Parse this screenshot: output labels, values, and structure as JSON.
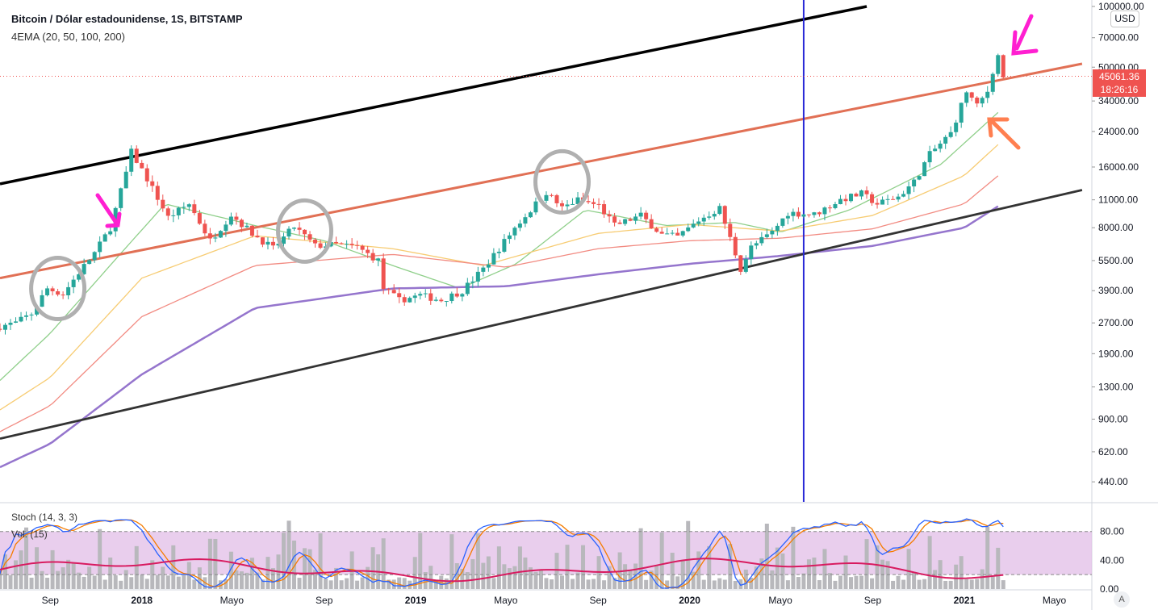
{
  "header": {
    "title": "Bitcoin / Dólar estadounidense, 1S, BITSTAMP",
    "indicator": "4EMA (20, 50, 100, 200)",
    "currency": "USD"
  },
  "price_badge": {
    "price": "45061.36",
    "countdown": "18:26:16"
  },
  "lower_pane": {
    "stoch_label": "Stoch (14, 3, 3)",
    "vol_label": "Vol. (15)"
  },
  "auto_button": "A",
  "colors": {
    "up": "#26a69a",
    "down": "#ef5350",
    "ema20": "#8fcf8a",
    "ema50": "#f7cc73",
    "ema100": "#f28b82",
    "ema200": "#9575cd",
    "channel": "#000000",
    "midline": "#e17055",
    "vline": "#2929d6",
    "stoch_k": "#2962ff",
    "stoch_d": "#f57c00",
    "vol_ma": "#d81b60",
    "stoch_band": "#e1bee7",
    "annotation_arrow": "#ff1fd1",
    "annotation_arrow2": "#ff7f50"
  },
  "chart_data": {
    "type": "candlestick",
    "title": "Bitcoin / Dólar estadounidense, 1S, BITSTAMP",
    "y_scale": "log",
    "y_ticks": [
      "100000.00",
      "70000.00",
      "50000.00",
      "34000.00",
      "24000.00",
      "16000.00",
      "11000.00",
      "8000.00",
      "5500.00",
      "3900.00",
      "2700.00",
      "1900.00",
      "1300.00",
      "900.00",
      "620.00",
      "440.00"
    ],
    "x_ticks": [
      "Sep",
      "2018",
      "Mayo",
      "Sep",
      "2019",
      "Mayo",
      "Sep",
      "2020",
      "Mayo",
      "Sep",
      "2021",
      "Mayo"
    ],
    "x_tick_dates": [
      "2017-09-01",
      "2018-01-01",
      "2018-05-01",
      "2018-09-01",
      "2019-01-01",
      "2019-05-01",
      "2019-09-01",
      "2020-01-01",
      "2020-05-01",
      "2020-09-01",
      "2021-01-01",
      "2021-05-01"
    ],
    "x_range": [
      "2017-06-26",
      "2021-06-20"
    ],
    "y_range": [
      350,
      100000
    ],
    "close_path": [
      {
        "date": "2017-06-26",
        "price": 2600
      },
      {
        "date": "2017-07-17",
        "price": 2700
      },
      {
        "date": "2017-08-07",
        "price": 3000
      },
      {
        "date": "2017-08-28",
        "price": 4000
      },
      {
        "date": "2017-09-18",
        "price": 3750
      },
      {
        "date": "2017-10-09",
        "price": 4800
      },
      {
        "date": "2017-10-30",
        "price": 6000
      },
      {
        "date": "2017-11-20",
        "price": 8000
      },
      {
        "date": "2017-12-11",
        "price": 15000
      },
      {
        "date": "2017-12-18",
        "price": 19000
      },
      {
        "date": "2018-01-08",
        "price": 14000
      },
      {
        "date": "2018-02-05",
        "price": 9000
      },
      {
        "date": "2018-03-05",
        "price": 10500
      },
      {
        "date": "2018-04-02",
        "price": 6900
      },
      {
        "date": "2018-04-30",
        "price": 9300
      },
      {
        "date": "2018-05-28",
        "price": 7500
      },
      {
        "date": "2018-06-25",
        "price": 6300
      },
      {
        "date": "2018-07-23",
        "price": 8100
      },
      {
        "date": "2018-08-20",
        "price": 6500
      },
      {
        "date": "2018-09-17",
        "price": 6600
      },
      {
        "date": "2018-10-15",
        "price": 6400
      },
      {
        "date": "2018-11-12",
        "price": 5500
      },
      {
        "date": "2018-11-19",
        "price": 4000
      },
      {
        "date": "2018-12-10",
        "price": 3500
      },
      {
        "date": "2019-01-07",
        "price": 3700
      },
      {
        "date": "2019-02-04",
        "price": 3500
      },
      {
        "date": "2019-03-04",
        "price": 3900
      },
      {
        "date": "2019-04-01",
        "price": 5000
      },
      {
        "date": "2019-05-13",
        "price": 8000
      },
      {
        "date": "2019-06-24",
        "price": 12000
      },
      {
        "date": "2019-07-15",
        "price": 10000
      },
      {
        "date": "2019-08-05",
        "price": 11000
      },
      {
        "date": "2019-09-02",
        "price": 10300
      },
      {
        "date": "2019-09-23",
        "price": 8200
      },
      {
        "date": "2019-10-28",
        "price": 9200
      },
      {
        "date": "2019-11-25",
        "price": 7400
      },
      {
        "date": "2019-12-16",
        "price": 7200
      },
      {
        "date": "2020-01-13",
        "price": 8700
      },
      {
        "date": "2020-02-10",
        "price": 10000
      },
      {
        "date": "2020-03-09",
        "price": 5000
      },
      {
        "date": "2020-03-23",
        "price": 6400
      },
      {
        "date": "2020-04-20",
        "price": 7600
      },
      {
        "date": "2020-05-11",
        "price": 9500
      },
      {
        "date": "2020-06-15",
        "price": 9300
      },
      {
        "date": "2020-07-20",
        "price": 11000
      },
      {
        "date": "2020-08-17",
        "price": 11800
      },
      {
        "date": "2020-09-07",
        "price": 10500
      },
      {
        "date": "2020-10-05",
        "price": 11400
      },
      {
        "date": "2020-10-26",
        "price": 13500
      },
      {
        "date": "2020-11-16",
        "price": 18500
      },
      {
        "date": "2020-12-14",
        "price": 23500
      },
      {
        "date": "2021-01-04",
        "price": 38000
      },
      {
        "date": "2021-01-18",
        "price": 32000
      },
      {
        "date": "2021-02-01",
        "price": 38000
      },
      {
        "date": "2021-02-08",
        "price": 48000
      },
      {
        "date": "2021-02-15",
        "price": 57000
      },
      {
        "date": "2021-02-22",
        "price": 45061
      }
    ],
    "ema_anchor_series": [
      {
        "name": "EMA20",
        "points": [
          {
            "date": "2017-06-26",
            "price": 1400
          },
          {
            "date": "2017-09-01",
            "price": 2400
          },
          {
            "date": "2017-12-01",
            "price": 5800
          },
          {
            "date": "2018-02-01",
            "price": 10500
          },
          {
            "date": "2018-06-01",
            "price": 8200
          },
          {
            "date": "2018-09-01",
            "price": 6900
          },
          {
            "date": "2018-12-01",
            "price": 5200
          },
          {
            "date": "2019-03-01",
            "price": 4000
          },
          {
            "date": "2019-05-15",
            "price": 5300
          },
          {
            "date": "2019-08-15",
            "price": 9800
          },
          {
            "date": "2019-12-01",
            "price": 8200
          },
          {
            "date": "2020-03-01",
            "price": 8500
          },
          {
            "date": "2020-05-01",
            "price": 7600
          },
          {
            "date": "2020-08-01",
            "price": 9800
          },
          {
            "date": "2020-12-01",
            "price": 16500
          },
          {
            "date": "2021-02-20",
            "price": 31000
          }
        ]
      },
      {
        "name": "EMA50",
        "points": [
          {
            "date": "2017-06-26",
            "price": 1000
          },
          {
            "date": "2017-09-01",
            "price": 1450
          },
          {
            "date": "2018-01-01",
            "price": 4500
          },
          {
            "date": "2018-06-01",
            "price": 7300
          },
          {
            "date": "2018-12-01",
            "price": 6300
          },
          {
            "date": "2019-04-01",
            "price": 5200
          },
          {
            "date": "2019-09-01",
            "price": 7500
          },
          {
            "date": "2020-01-01",
            "price": 8300
          },
          {
            "date": "2020-05-01",
            "price": 7700
          },
          {
            "date": "2020-09-01",
            "price": 9200
          },
          {
            "date": "2021-01-01",
            "price": 14500
          },
          {
            "date": "2021-02-20",
            "price": 21500
          }
        ]
      },
      {
        "name": "EMA100",
        "points": [
          {
            "date": "2017-06-26",
            "price": 780
          },
          {
            "date": "2017-09-01",
            "price": 1050
          },
          {
            "date": "2018-01-01",
            "price": 2900
          },
          {
            "date": "2018-06-01",
            "price": 5200
          },
          {
            "date": "2018-12-01",
            "price": 5900
          },
          {
            "date": "2019-05-01",
            "price": 5100
          },
          {
            "date": "2019-09-01",
            "price": 6300
          },
          {
            "date": "2020-01-01",
            "price": 6900
          },
          {
            "date": "2020-05-01",
            "price": 7100
          },
          {
            "date": "2020-09-01",
            "price": 7900
          },
          {
            "date": "2021-01-01",
            "price": 10500
          },
          {
            "date": "2021-02-20",
            "price": 15000
          }
        ]
      },
      {
        "name": "EMA200",
        "points": [
          {
            "date": "2017-06-26",
            "price": 520
          },
          {
            "date": "2017-09-01",
            "price": 680
          },
          {
            "date": "2018-01-01",
            "price": 1500
          },
          {
            "date": "2018-06-01",
            "price": 3200
          },
          {
            "date": "2018-12-01",
            "price": 4000
          },
          {
            "date": "2019-05-01",
            "price": 4100
          },
          {
            "date": "2019-09-01",
            "price": 4700
          },
          {
            "date": "2020-01-01",
            "price": 5300
          },
          {
            "date": "2020-05-01",
            "price": 5800
          },
          {
            "date": "2020-09-01",
            "price": 6500
          },
          {
            "date": "2021-01-01",
            "price": 8000
          },
          {
            "date": "2021-02-20",
            "price": 10500
          }
        ]
      }
    ],
    "trendlines": [
      {
        "name": "upper-channel",
        "from": {
          "date": "2017-06-26",
          "price": 13200
        },
        "to": {
          "date": "2020-08-24",
          "price": 100000
        }
      },
      {
        "name": "midline",
        "from": {
          "date": "2017-06-26",
          "price": 4500
        },
        "to": {
          "date": "2021-06-07",
          "price": 52000
        }
      },
      {
        "name": "lower-channel",
        "from": {
          "date": "2017-06-26",
          "price": 720
        },
        "to": {
          "date": "2021-06-07",
          "price": 12300
        }
      }
    ],
    "vertical_line_date": "2020-06-01",
    "current_price": 45061.36,
    "stoch_axis": {
      "ticks": [
        "80.00",
        "40.00",
        "0.00"
      ],
      "range": [
        0,
        110
      ],
      "band": [
        20,
        80
      ]
    }
  }
}
